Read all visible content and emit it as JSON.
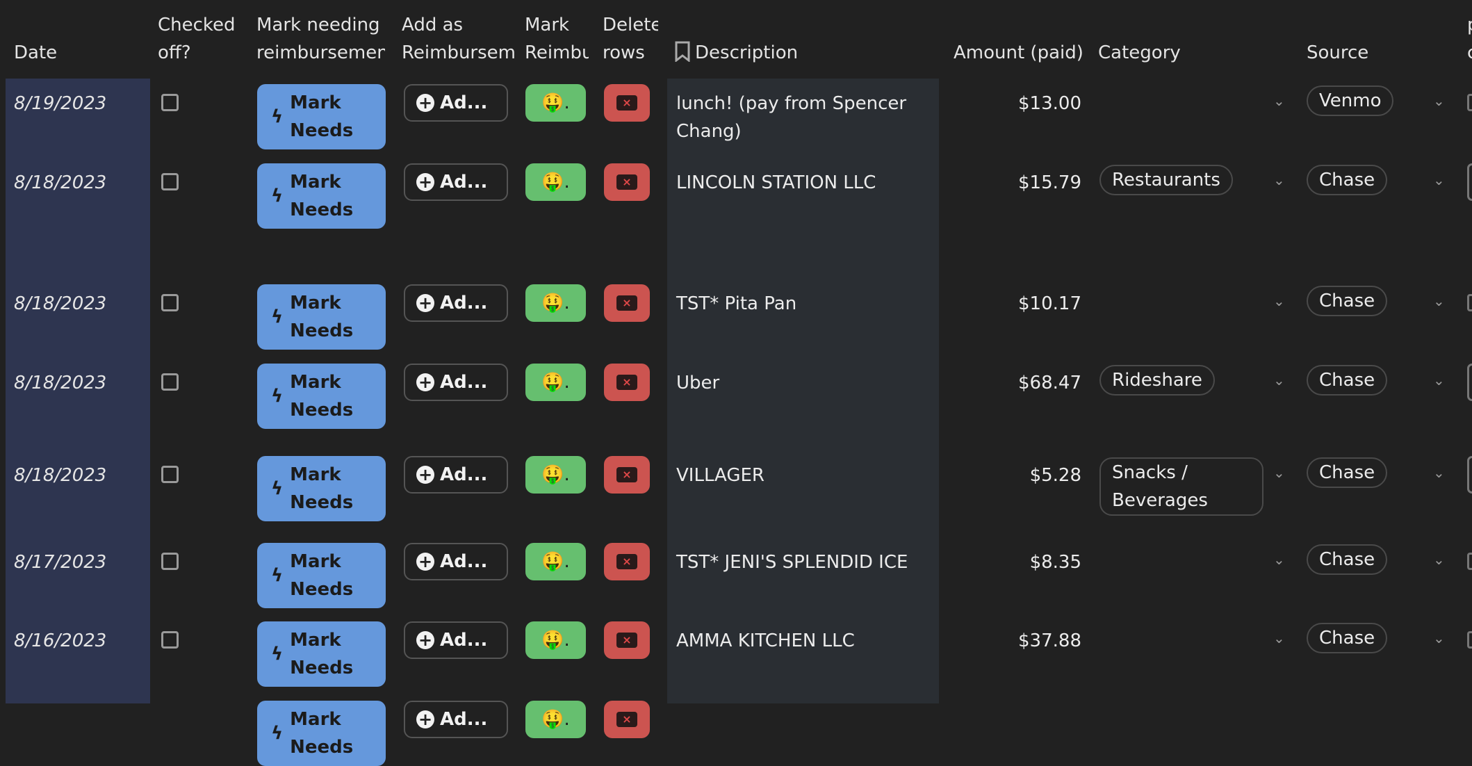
{
  "headers": {
    "date": "Date",
    "checked": [
      "Checked",
      "off?"
    ],
    "mark_needing": [
      "Mark needing",
      "reimbursemen"
    ],
    "add_as": [
      "Add as",
      "Reimbursem"
    ],
    "mark_reimb": [
      "Mark",
      "Reimbu"
    ],
    "delete": [
      "Delete",
      "rows"
    ],
    "description": "Description",
    "amount": "Amount (paid)",
    "category": "Category",
    "source": "Source",
    "partial": [
      "p",
      "c"
    ]
  },
  "buttons": {
    "mark_needs": [
      "Mark",
      "Needs"
    ],
    "add": "Ad...",
    "reimb_emoji": "🤑",
    "reimb_suffix": "."
  },
  "colors": {
    "background": "#212121",
    "date_column": "#2e3550",
    "description_column": "#2a2e33",
    "mark_button": "#6598dc",
    "reimburse_button": "#66bf6f",
    "delete_button": "#cc5450"
  },
  "rows": [
    {
      "date": "8/19/2023",
      "description": "lunch! (pay from Spencer Chang)",
      "amount": "$13.00",
      "category": "",
      "source": "Venmo"
    },
    {
      "date": "8/18/2023",
      "description": "LINCOLN STATION LLC",
      "amount": "$15.79",
      "category": "Restaurants",
      "source": "Chase"
    },
    {
      "date": "8/18/2023",
      "description": "TST* Pita Pan",
      "amount": "$10.17",
      "category": "",
      "source": "Chase"
    },
    {
      "date": "8/18/2023",
      "description": "Uber",
      "amount": "$68.47",
      "category": "Rideshare",
      "source": "Chase"
    },
    {
      "date": "8/18/2023",
      "description": "VILLAGER",
      "amount": "$5.28",
      "category": "Snacks / Beverages",
      "source": "Chase"
    },
    {
      "date": "8/17/2023",
      "description": "TST* JENI'S SPLENDID ICE",
      "amount": "$8.35",
      "category": "",
      "source": "Chase"
    },
    {
      "date": "8/16/2023",
      "description": "AMMA KITCHEN LLC",
      "amount": "$37.88",
      "category": "",
      "source": "Chase"
    },
    {
      "date": "",
      "description": "",
      "amount": "",
      "category": "",
      "source": ""
    }
  ]
}
